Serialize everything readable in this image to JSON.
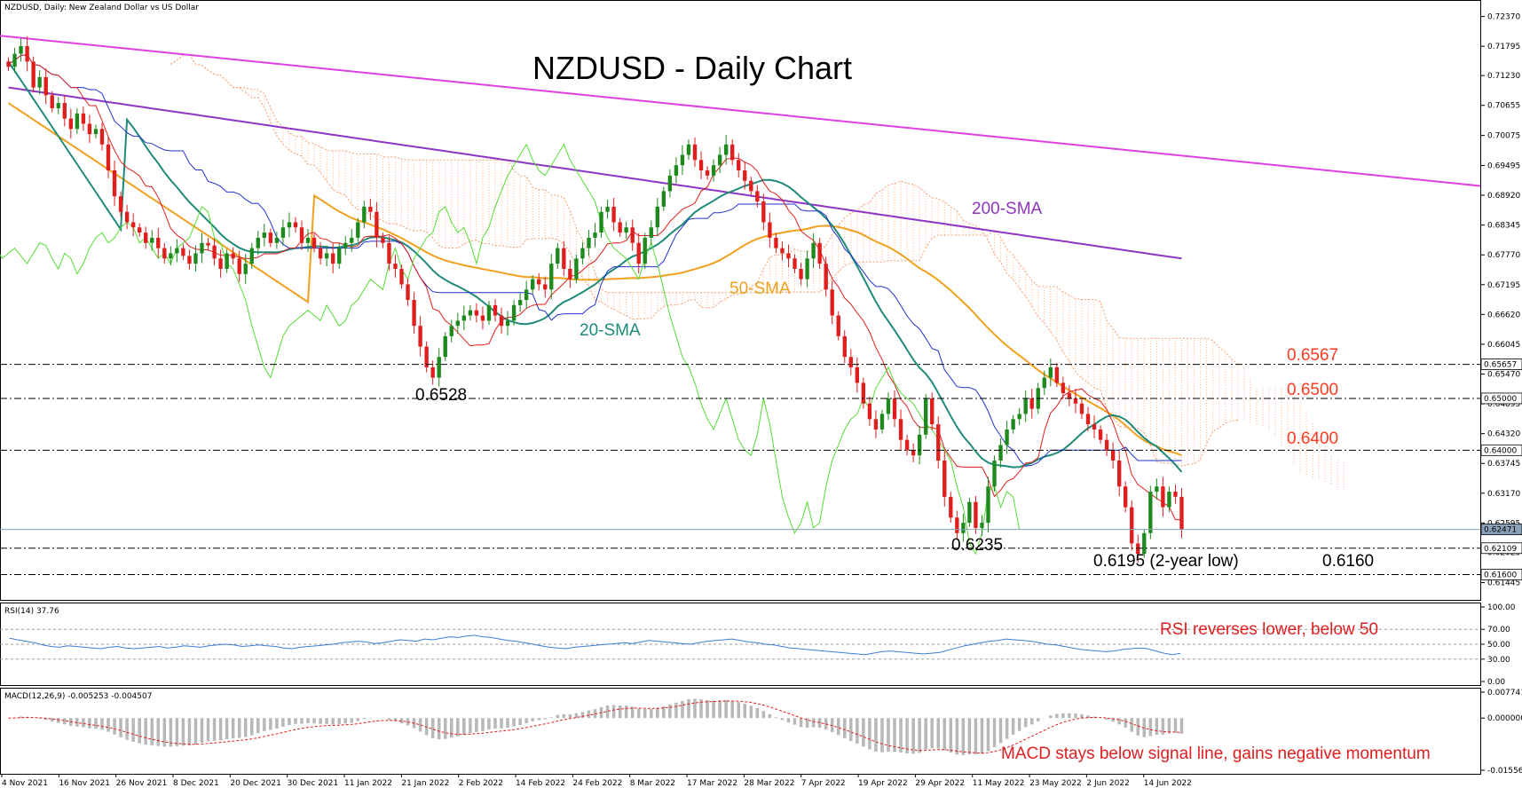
{
  "header": {
    "symbol_info": "NZDUSD, Daily:  New Zealand Dollar vs US Dollar"
  },
  "chart_data": [
    {
      "type": "candlestick",
      "title": "NZDUSD - Daily Chart",
      "ylim": [
        0.6118,
        0.7262
      ],
      "grid": false,
      "y_ticks": [
        "0.72370",
        "0.71795",
        "0.71230",
        "0.70655",
        "0.70075",
        "0.69495",
        "0.68920",
        "0.68345",
        "0.67770",
        "0.67195",
        "0.66620",
        "0.66045",
        "0.65470",
        "0.64895",
        "0.64320",
        "0.63745",
        "0.63170",
        "0.62595",
        "0.62025",
        "0.61445"
      ],
      "price_tags": [
        {
          "label": "0.65657",
          "value": 0.65657,
          "color": "#000000"
        },
        {
          "label": "0.65000",
          "value": 0.65,
          "color": "#000000"
        },
        {
          "label": "0.64000",
          "value": 0.64,
          "color": "#000000"
        },
        {
          "label": "0.62471",
          "value": 0.62471,
          "color": "#8aa0b8"
        },
        {
          "label": "0.62109",
          "value": 0.62109,
          "color": "#000000"
        },
        {
          "label": "0.61600",
          "value": 0.616,
          "color": "#000000"
        }
      ],
      "x_labels": [
        "4 Nov 2021",
        "16 Nov 2021",
        "26 Nov 2021",
        "8 Dec 2021",
        "20 Dec 2021",
        "30 Dec 2021",
        "11 Jan 2022",
        "21 Jan 2022",
        "2 Feb 2022",
        "14 Feb 2022",
        "24 Feb 2022",
        "8 Mar 2022",
        "17 Mar 2022",
        "28 Mar 2022",
        "7 Apr 2022",
        "19 Apr 2022",
        "29 Apr 2022",
        "11 May 2022",
        "23 May 2022",
        "2 Jun 2022",
        "14 Jun 2022"
      ],
      "close": [
        0.714,
        0.7165,
        0.718,
        0.715,
        0.71,
        0.712,
        0.7085,
        0.706,
        0.707,
        0.704,
        0.702,
        0.705,
        0.703,
        0.701,
        0.702,
        0.699,
        0.694,
        0.689,
        0.686,
        0.684,
        0.683,
        0.682,
        0.68,
        0.681,
        0.679,
        0.677,
        0.678,
        0.679,
        0.6775,
        0.676,
        0.678,
        0.68,
        0.6795,
        0.677,
        0.675,
        0.678,
        0.677,
        0.674,
        0.676,
        0.679,
        0.681,
        0.682,
        0.68,
        0.681,
        0.683,
        0.684,
        0.683,
        0.68,
        0.681,
        0.679,
        0.677,
        0.678,
        0.676,
        0.679,
        0.68,
        0.681,
        0.684,
        0.687,
        0.686,
        0.681,
        0.68,
        0.676,
        0.675,
        0.672,
        0.669,
        0.664,
        0.66,
        0.656,
        0.654,
        0.658,
        0.662,
        0.664,
        0.665,
        0.666,
        0.667,
        0.666,
        0.665,
        0.668,
        0.666,
        0.664,
        0.665,
        0.668,
        0.669,
        0.671,
        0.673,
        0.672,
        0.671,
        0.676,
        0.679,
        0.675,
        0.673,
        0.677,
        0.679,
        0.681,
        0.682,
        0.686,
        0.687,
        0.684,
        0.682,
        0.683,
        0.68,
        0.676,
        0.681,
        0.683,
        0.687,
        0.69,
        0.693,
        0.695,
        0.697,
        0.699,
        0.696,
        0.694,
        0.693,
        0.695,
        0.697,
        0.699,
        0.696,
        0.694,
        0.692,
        0.69,
        0.688,
        0.684,
        0.681,
        0.679,
        0.678,
        0.677,
        0.675,
        0.673,
        0.677,
        0.68,
        0.676,
        0.671,
        0.666,
        0.662,
        0.658,
        0.656,
        0.653,
        0.649,
        0.646,
        0.644,
        0.647,
        0.65,
        0.646,
        0.642,
        0.64,
        0.639,
        0.643,
        0.65,
        0.645,
        0.638,
        0.631,
        0.627,
        0.624,
        0.626,
        0.63,
        0.625,
        0.626,
        0.633,
        0.638,
        0.641,
        0.644,
        0.646,
        0.647,
        0.65,
        0.648,
        0.652,
        0.654,
        0.656,
        0.653,
        0.651,
        0.65,
        0.649,
        0.647,
        0.645,
        0.644,
        0.642,
        0.64,
        0.638,
        0.633,
        0.629,
        0.622,
        0.62,
        0.624,
        0.632,
        0.633,
        0.629,
        0.632,
        0.631,
        0.6247
      ],
      "series": [
        {
          "name": "200-SMA",
          "color": "#8e35c4",
          "values": [
            0.71,
            0.696,
            0.686,
            0.677
          ]
        },
        {
          "name": "50-SMA",
          "color": "#f2a01e",
          "values": [
            0.707,
            0.685,
            0.672,
            0.676,
            0.686,
            0.645
          ]
        },
        {
          "name": "20-SMA",
          "color": "#1f8a7a",
          "values": [
            0.715,
            0.68,
            0.666,
            0.672,
            0.69,
            0.63,
            0.641,
            0.64
          ]
        }
      ],
      "trendline": {
        "color": "#e040e0",
        "start": 0.72,
        "end": 0.691
      },
      "levels": [
        {
          "label": "0.6567",
          "value": 0.65657,
          "color": "#ff3b1f"
        },
        {
          "label": "0.6500",
          "value": 0.65,
          "color": "#ff3b1f"
        },
        {
          "label": "0.6400",
          "value": 0.64,
          "color": "#ff3b1f"
        },
        {
          "label": "0.6160",
          "value": 0.616,
          "color": "#000000"
        }
      ],
      "annotations": {
        "sma200": "200-SMA",
        "sma50": "50-SMA",
        "sma20": "20-SMA",
        "low_0_6528": "0.6528",
        "low_0_6235": "0.6235",
        "low_0_6195": "0.6195 (2-year low)"
      },
      "colors": {
        "bull": "#1e8a1e",
        "bear": "#e01e1e",
        "tenkan": "#e01e1e",
        "kijun": "#2233cc",
        "chikou": "#55dd33",
        "cloud": "#f4a070"
      }
    },
    {
      "type": "line",
      "name": "RSI(14) 37.76",
      "ylim": [
        0,
        100
      ],
      "y_ticks": [
        "100.00",
        "70.00",
        "50.00",
        "30.00",
        "0.00"
      ],
      "values": [
        58,
        56,
        54,
        52,
        49,
        47,
        46,
        48,
        47,
        46,
        45,
        44,
        46,
        47,
        45,
        44,
        45,
        46,
        47,
        45,
        46,
        48,
        47,
        46,
        48,
        49,
        50,
        49,
        47,
        48,
        49,
        48,
        47,
        45,
        44,
        46,
        47,
        48,
        49,
        50,
        52,
        53,
        54,
        53,
        51,
        52,
        54,
        56,
        55,
        54,
        57,
        56,
        58,
        60,
        59,
        61,
        62,
        60,
        59,
        57,
        55,
        54,
        52,
        50,
        48,
        46,
        45,
        44,
        46,
        47,
        48,
        49,
        50,
        51,
        52,
        51,
        53,
        55,
        54,
        53,
        52,
        51,
        50,
        52,
        54,
        55,
        56,
        57,
        55,
        53,
        52,
        50,
        49,
        47,
        45,
        44,
        43,
        42,
        41,
        40,
        39,
        38,
        37,
        36,
        38,
        40,
        41,
        40,
        39,
        38,
        37,
        38,
        39,
        42,
        45,
        48,
        50,
        52,
        54,
        55,
        57,
        56,
        55,
        54,
        52,
        50,
        49,
        47,
        45,
        43,
        42,
        41,
        40,
        41,
        43,
        44,
        45,
        44,
        41,
        38,
        36,
        37.76
      ],
      "annotation": "RSI reverses lower, below 50",
      "color": "#3b7fd4"
    },
    {
      "type": "bar+line",
      "name": "MACD(12,26,9) -0.005253 -0.004507",
      "ylim": [
        -0.015565,
        0.007741
      ],
      "y_ticks": [
        "0.007741",
        "0.000000",
        "-0.015565"
      ],
      "annotation": "MACD stays below signal line, gains negative momentum",
      "signal_color": "#e01e1e"
    }
  ]
}
